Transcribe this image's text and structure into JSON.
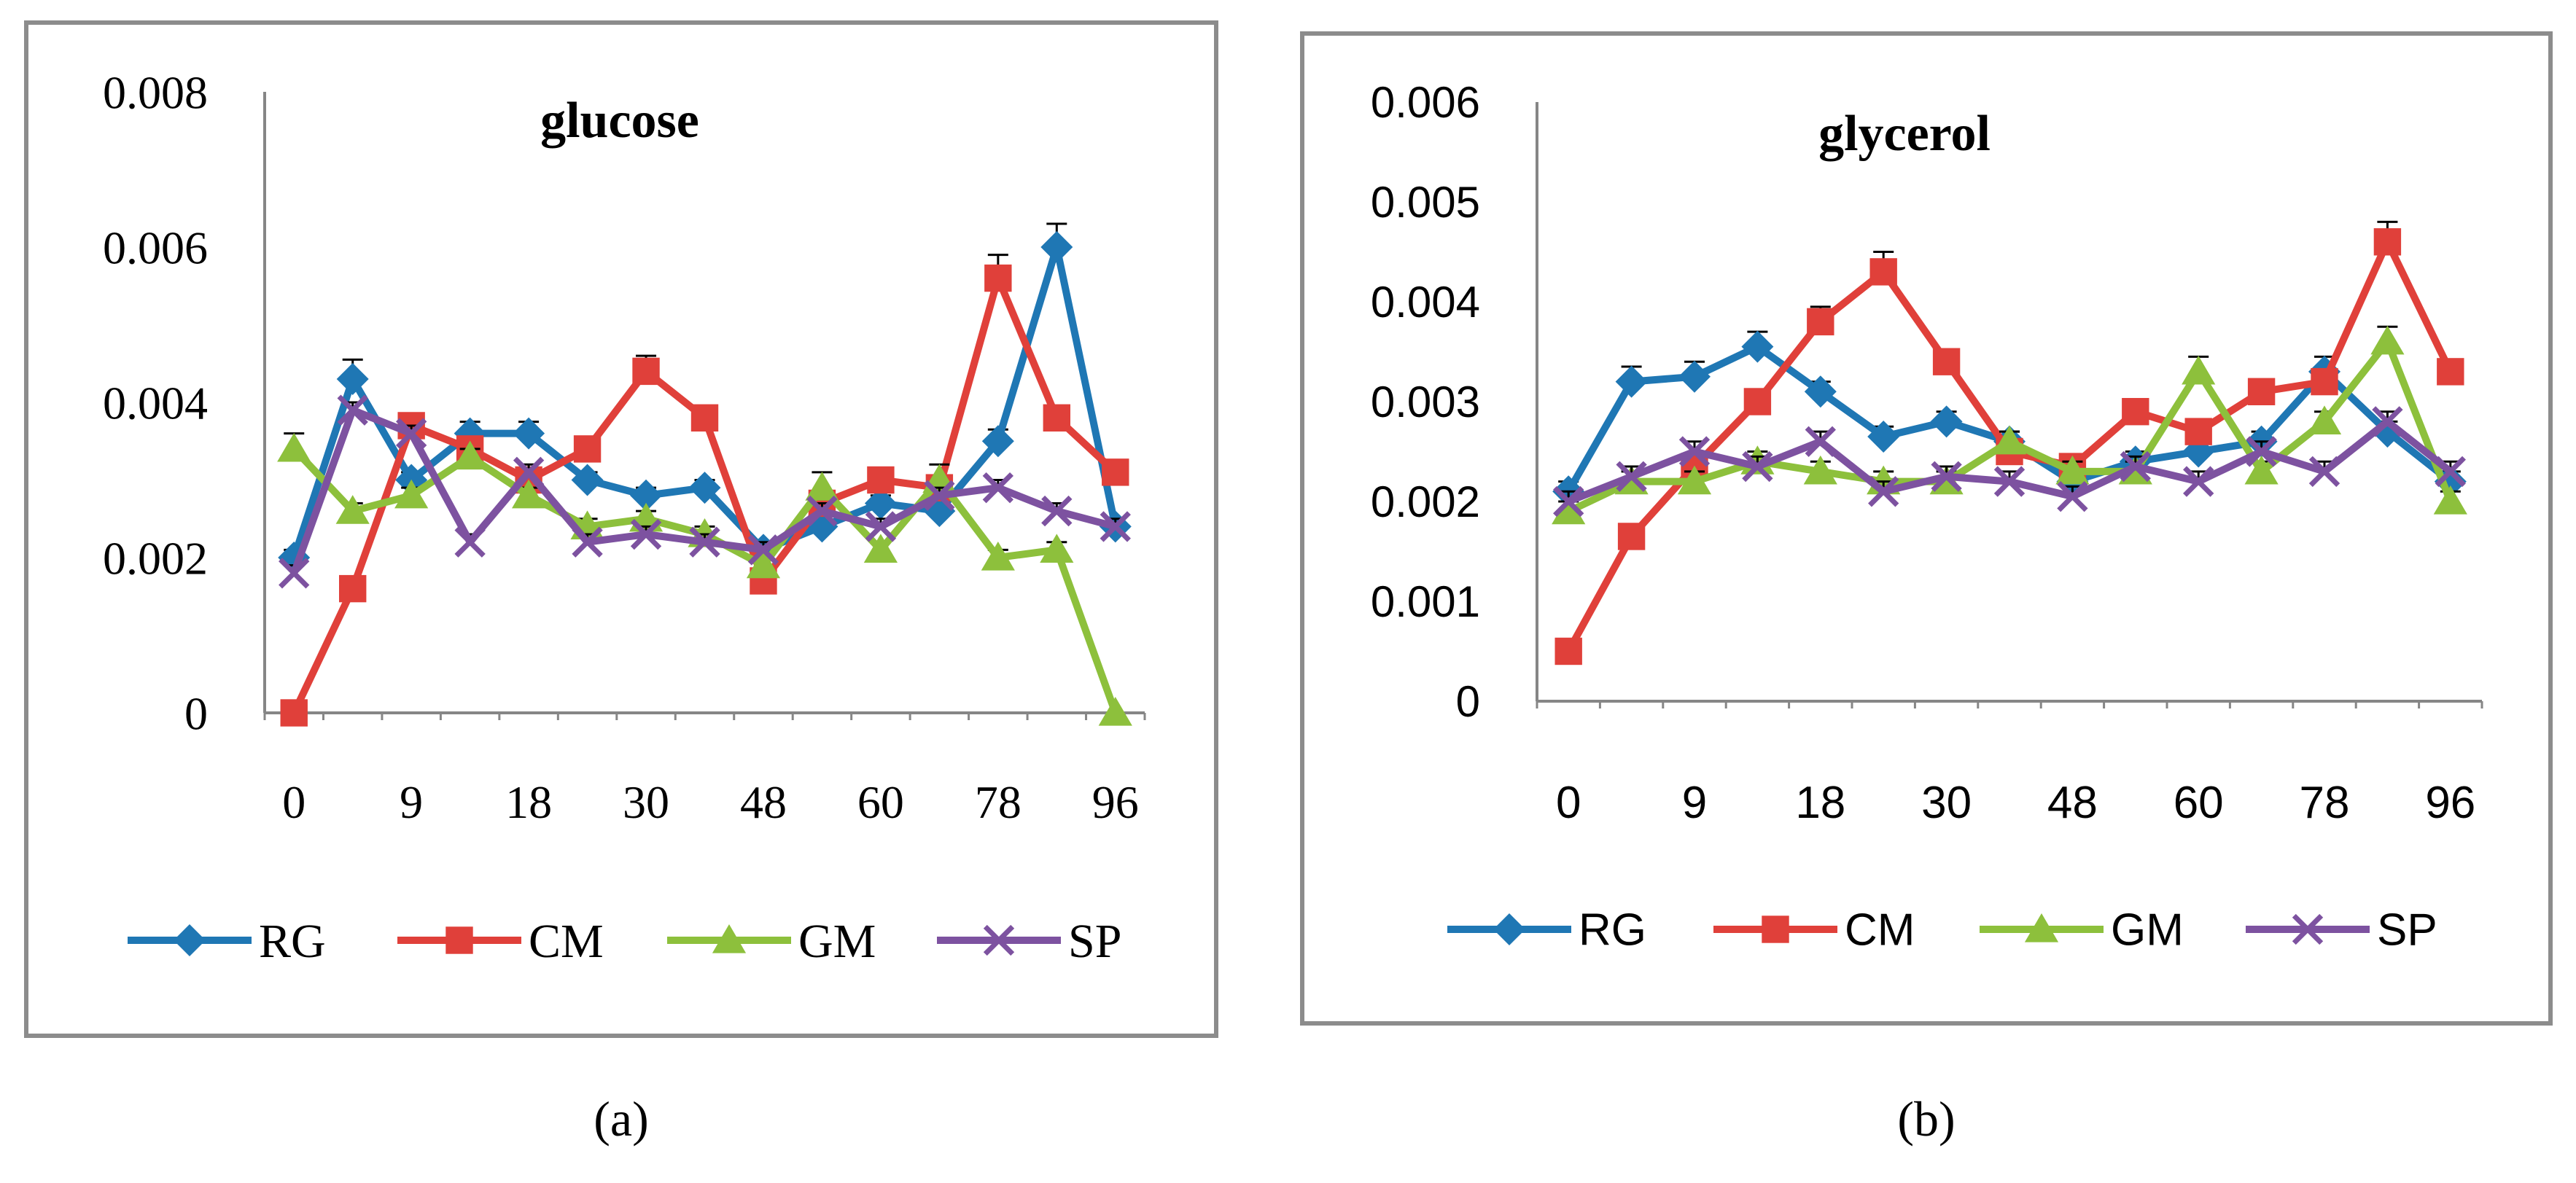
{
  "figure": {
    "panel_labels": [
      "(a)",
      "(b)"
    ]
  },
  "chart_data": [
    {
      "type": "line",
      "title": "glucose",
      "panel_label": "(a)",
      "xlabel": "",
      "ylabel": "",
      "categories": [
        "0",
        "",
        "9",
        "",
        "18",
        "",
        "30",
        "",
        "48",
        "",
        "60",
        "",
        "78",
        "",
        "96"
      ],
      "ylim": [
        0,
        0.008
      ],
      "yticks": [
        "0",
        "0.002",
        "0.004",
        "0.006",
        "0.008"
      ],
      "grid": false,
      "legend_position": "bottom",
      "error_bars": true,
      "series": [
        {
          "name": "RG",
          "color": "#1f77b4",
          "marker": "diamond",
          "values": [
            0.002,
            0.0043,
            0.003,
            0.0036,
            0.0036,
            0.003,
            0.0028,
            0.0029,
            0.0021,
            0.0024,
            0.0027,
            0.0026,
            0.0035,
            0.006,
            0.0024
          ],
          "errors": [
            0.0001,
            0.00025,
            0.0001,
            0.00015,
            0.00015,
            0.0001,
            0.0001,
            0.0001,
            0.0001,
            0.0001,
            0.0001,
            0.0001,
            0.00015,
            0.0003,
            0.0001
          ]
        },
        {
          "name": "CM",
          "color": "#e0403a",
          "marker": "square",
          "values": [
            0.0,
            0.0016,
            0.0037,
            0.0034,
            0.003,
            0.0034,
            0.0044,
            0.0038,
            0.0017,
            0.0027,
            0.003,
            0.0029,
            0.0056,
            0.0038,
            0.0031
          ],
          "errors": [
            0,
            0.0001,
            0.0001,
            0.0001,
            0.0001,
            0.0001,
            0.0002,
            0.0001,
            0.0001,
            0.0001,
            0.0001,
            0.0001,
            0.0003,
            0.0001,
            0.0001
          ]
        },
        {
          "name": "GM",
          "color": "#8dc03c",
          "marker": "triangle",
          "values": [
            0.0034,
            0.0026,
            0.0028,
            0.0033,
            0.0028,
            0.0024,
            0.0025,
            0.0023,
            0.0019,
            0.0029,
            0.0021,
            0.003,
            0.002,
            0.0021,
            0.0
          ],
          "errors": [
            0.0002,
            0.0001,
            0.0001,
            0.0001,
            0.0001,
            0.0001,
            0.0001,
            0.0001,
            0.0001,
            0.0002,
            0.0001,
            0.0002,
            0.0001,
            0.0001,
            0
          ]
        },
        {
          "name": "SP",
          "color": "#7d52a0",
          "marker": "x",
          "values": [
            0.0018,
            0.0039,
            0.0036,
            0.0022,
            0.0031,
            0.0022,
            0.0023,
            0.0022,
            0.0021,
            0.0026,
            0.0024,
            0.0028,
            0.0029,
            0.0026,
            0.0024
          ],
          "errors": [
            0.0001,
            0.0001,
            0.0001,
            0.0001,
            0.0001,
            0.0001,
            0.0001,
            0.0001,
            0.0001,
            0.0001,
            0.0001,
            0.0001,
            0.0001,
            0.0001,
            0.0001
          ]
        }
      ]
    },
    {
      "type": "line",
      "title": "glycerol",
      "panel_label": "(b)",
      "xlabel": "",
      "ylabel": "",
      "categories": [
        "0",
        "",
        "9",
        "",
        "18",
        "",
        "30",
        "",
        "48",
        "",
        "60",
        "",
        "78",
        "",
        "96"
      ],
      "ylim": [
        0,
        0.006
      ],
      "yticks": [
        "0",
        "0.001",
        "0.002",
        "0.003",
        "0.004",
        "0.005",
        "0.006"
      ],
      "grid": false,
      "legend_position": "bottom",
      "error_bars": true,
      "series": [
        {
          "name": "RG",
          "color": "#1f77b4",
          "marker": "diamond",
          "values": [
            0.0021,
            0.0032,
            0.00325,
            0.00355,
            0.0031,
            0.00265,
            0.0028,
            0.0026,
            0.0022,
            0.0024,
            0.0025,
            0.0026,
            0.0033,
            0.0027,
            0.0022
          ],
          "errors": [
            0.0001,
            0.00015,
            0.00015,
            0.00015,
            0.0001,
            0.0001,
            0.0001,
            0.0001,
            0.0001,
            0.0001,
            0.0001,
            0.0001,
            0.00015,
            0.0001,
            0.0001
          ]
        },
        {
          "name": "CM",
          "color": "#e0403a",
          "marker": "square",
          "values": [
            0.0005,
            0.00165,
            0.00235,
            0.003,
            0.0038,
            0.0043,
            0.0034,
            0.0025,
            0.00235,
            0.0029,
            0.0027,
            0.0031,
            0.0032,
            0.0046,
            0.0033
          ],
          "errors": [
            0,
            0.0001,
            0.0001,
            0.0001,
            0.00015,
            0.0002,
            0.0001,
            0.0001,
            0.0001,
            0.0001,
            0.0001,
            0.0001,
            0.0001,
            0.0002,
            0.0001
          ]
        },
        {
          "name": "GM",
          "color": "#8dc03c",
          "marker": "triangle",
          "values": [
            0.0019,
            0.0022,
            0.0022,
            0.0024,
            0.0023,
            0.0022,
            0.0022,
            0.0026,
            0.0023,
            0.0023,
            0.0033,
            0.0023,
            0.0028,
            0.0036,
            0.002
          ],
          "errors": [
            0.0001,
            0.0001,
            0.0001,
            0.0001,
            0.0001,
            0.0001,
            0.0001,
            0.0001,
            0.0001,
            0.0001,
            0.00015,
            0.0001,
            0.0001,
            0.00015,
            0.0001
          ]
        },
        {
          "name": "SP",
          "color": "#7d52a0",
          "marker": "x",
          "values": [
            0.002,
            0.00225,
            0.0025,
            0.00235,
            0.0026,
            0.0021,
            0.00225,
            0.0022,
            0.00205,
            0.00235,
            0.0022,
            0.0025,
            0.0023,
            0.0028,
            0.0023
          ],
          "errors": [
            0.0001,
            0.0001,
            0.0001,
            0.0001,
            0.0001,
            0.0001,
            0.0001,
            0.0001,
            0.0001,
            0.0001,
            0.0001,
            0.0001,
            0.0001,
            0.0001,
            0.0001
          ]
        }
      ]
    }
  ]
}
